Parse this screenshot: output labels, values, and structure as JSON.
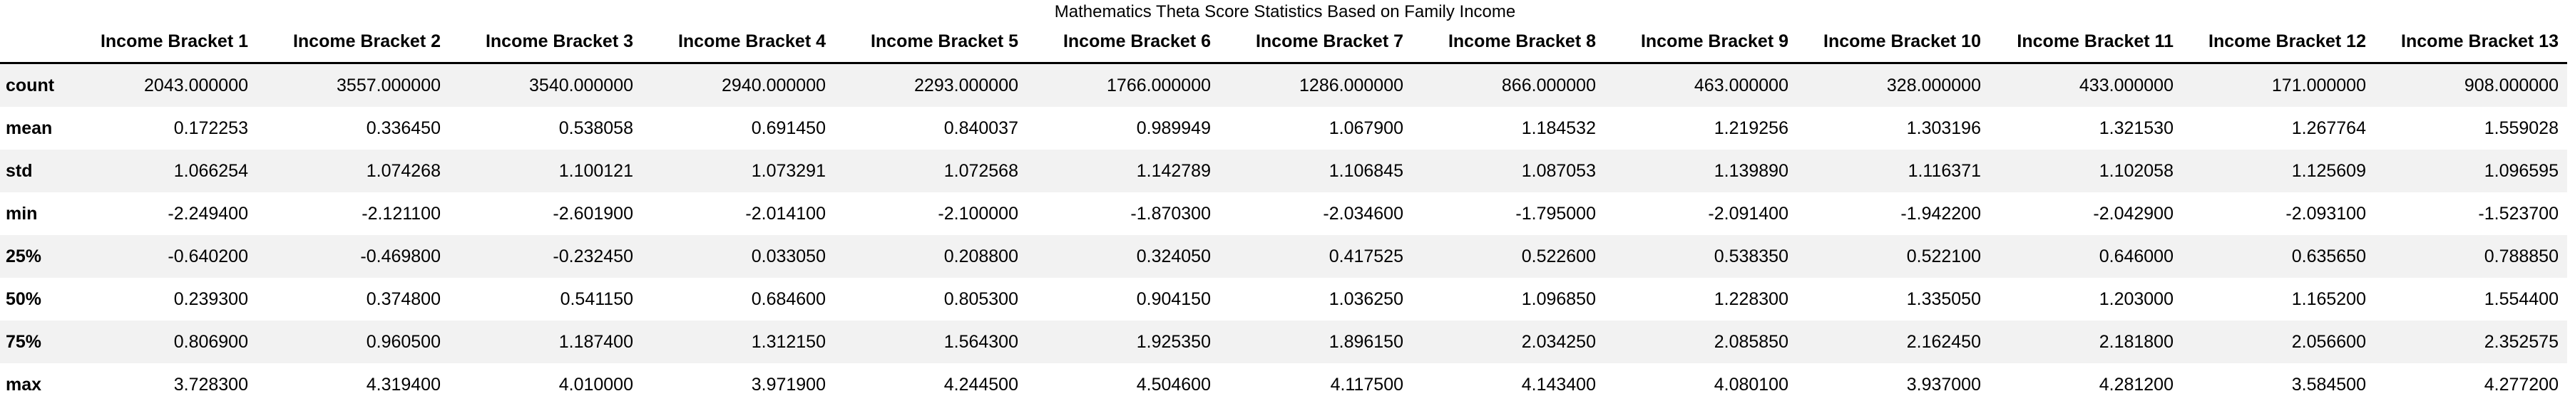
{
  "title": "Mathematics Theta Score Statistics Based on Family Income",
  "colors": {
    "background": "#ffffff",
    "stripe": "#f2f2f2",
    "text": "#000000",
    "header_rule": "#000000"
  },
  "chart_data": {
    "type": "table",
    "title": "Mathematics Theta Score Statistics Based on Family Income",
    "columns": [
      "Income Bracket 1",
      "Income Bracket 2",
      "Income Bracket 3",
      "Income Bracket 4",
      "Income Bracket 5",
      "Income Bracket 6",
      "Income Bracket 7",
      "Income Bracket 8",
      "Income Bracket 9",
      "Income Bracket 10",
      "Income Bracket 11",
      "Income Bracket 12",
      "Income Bracket 13"
    ],
    "rows": [
      {
        "label": "count",
        "values": [
          "2043.000000",
          "3557.000000",
          "3540.000000",
          "2940.000000",
          "2293.000000",
          "1766.000000",
          "1286.000000",
          "866.000000",
          "463.000000",
          "328.000000",
          "433.000000",
          "171.000000",
          "908.000000"
        ]
      },
      {
        "label": "mean",
        "values": [
          "0.172253",
          "0.336450",
          "0.538058",
          "0.691450",
          "0.840037",
          "0.989949",
          "1.067900",
          "1.184532",
          "1.219256",
          "1.303196",
          "1.321530",
          "1.267764",
          "1.559028"
        ]
      },
      {
        "label": "std",
        "values": [
          "1.066254",
          "1.074268",
          "1.100121",
          "1.073291",
          "1.072568",
          "1.142789",
          "1.106845",
          "1.087053",
          "1.139890",
          "1.116371",
          "1.102058",
          "1.125609",
          "1.096595"
        ]
      },
      {
        "label": "min",
        "values": [
          "-2.249400",
          "-2.121100",
          "-2.601900",
          "-2.014100",
          "-2.100000",
          "-1.870300",
          "-2.034600",
          "-1.795000",
          "-2.091400",
          "-1.942200",
          "-2.042900",
          "-2.093100",
          "-1.523700"
        ]
      },
      {
        "label": "25%",
        "values": [
          "-0.640200",
          "-0.469800",
          "-0.232450",
          "0.033050",
          "0.208800",
          "0.324050",
          "0.417525",
          "0.522600",
          "0.538350",
          "0.522100",
          "0.646000",
          "0.635650",
          "0.788850"
        ]
      },
      {
        "label": "50%",
        "values": [
          "0.239300",
          "0.374800",
          "0.541150",
          "0.684600",
          "0.805300",
          "0.904150",
          "1.036250",
          "1.096850",
          "1.228300",
          "1.335050",
          "1.203000",
          "1.165200",
          "1.554400"
        ]
      },
      {
        "label": "75%",
        "values": [
          "0.806900",
          "0.960500",
          "1.187400",
          "1.312150",
          "1.564300",
          "1.925350",
          "1.896150",
          "2.034250",
          "2.085850",
          "2.162450",
          "2.181800",
          "2.056600",
          "2.352575"
        ]
      },
      {
        "label": "max",
        "values": [
          "3.728300",
          "4.319400",
          "4.010000",
          "3.971900",
          "4.244500",
          "4.504600",
          "4.117500",
          "4.143400",
          "4.080100",
          "3.937000",
          "4.281200",
          "3.584500",
          "4.277200"
        ]
      }
    ]
  }
}
